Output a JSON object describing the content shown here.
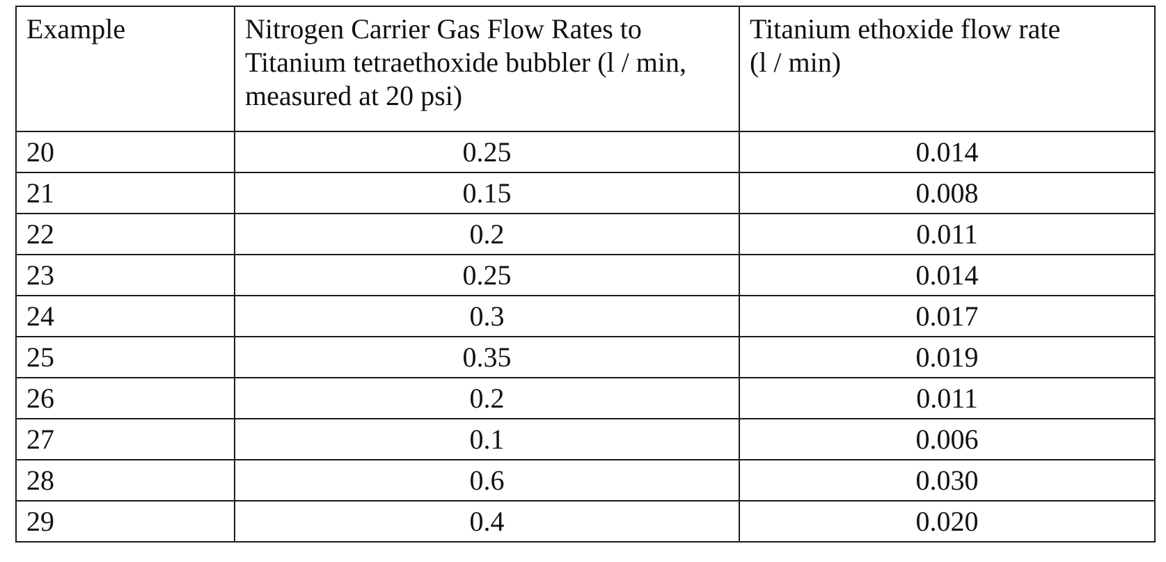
{
  "table": {
    "headers": [
      "Example",
      "Nitrogen Carrier Gas Flow Rates to Titanium tetraethoxide bubbler (l / min, measured at 20 psi)",
      "Titanium ethoxide flow rate\n(l / min)"
    ],
    "rows": [
      [
        "20",
        "0.25",
        "0.014"
      ],
      [
        "21",
        "0.15",
        "0.008"
      ],
      [
        "22",
        "0.2",
        "0.011"
      ],
      [
        "23",
        "0.25",
        "0.014"
      ],
      [
        "24",
        "0.3",
        "0.017"
      ],
      [
        "25",
        "0.35",
        "0.019"
      ],
      [
        "26",
        "0.2",
        "0.011"
      ],
      [
        "27",
        "0.1",
        "0.006"
      ],
      [
        "28",
        "0.6",
        "0.030"
      ],
      [
        "29",
        "0.4",
        "0.020"
      ]
    ]
  }
}
